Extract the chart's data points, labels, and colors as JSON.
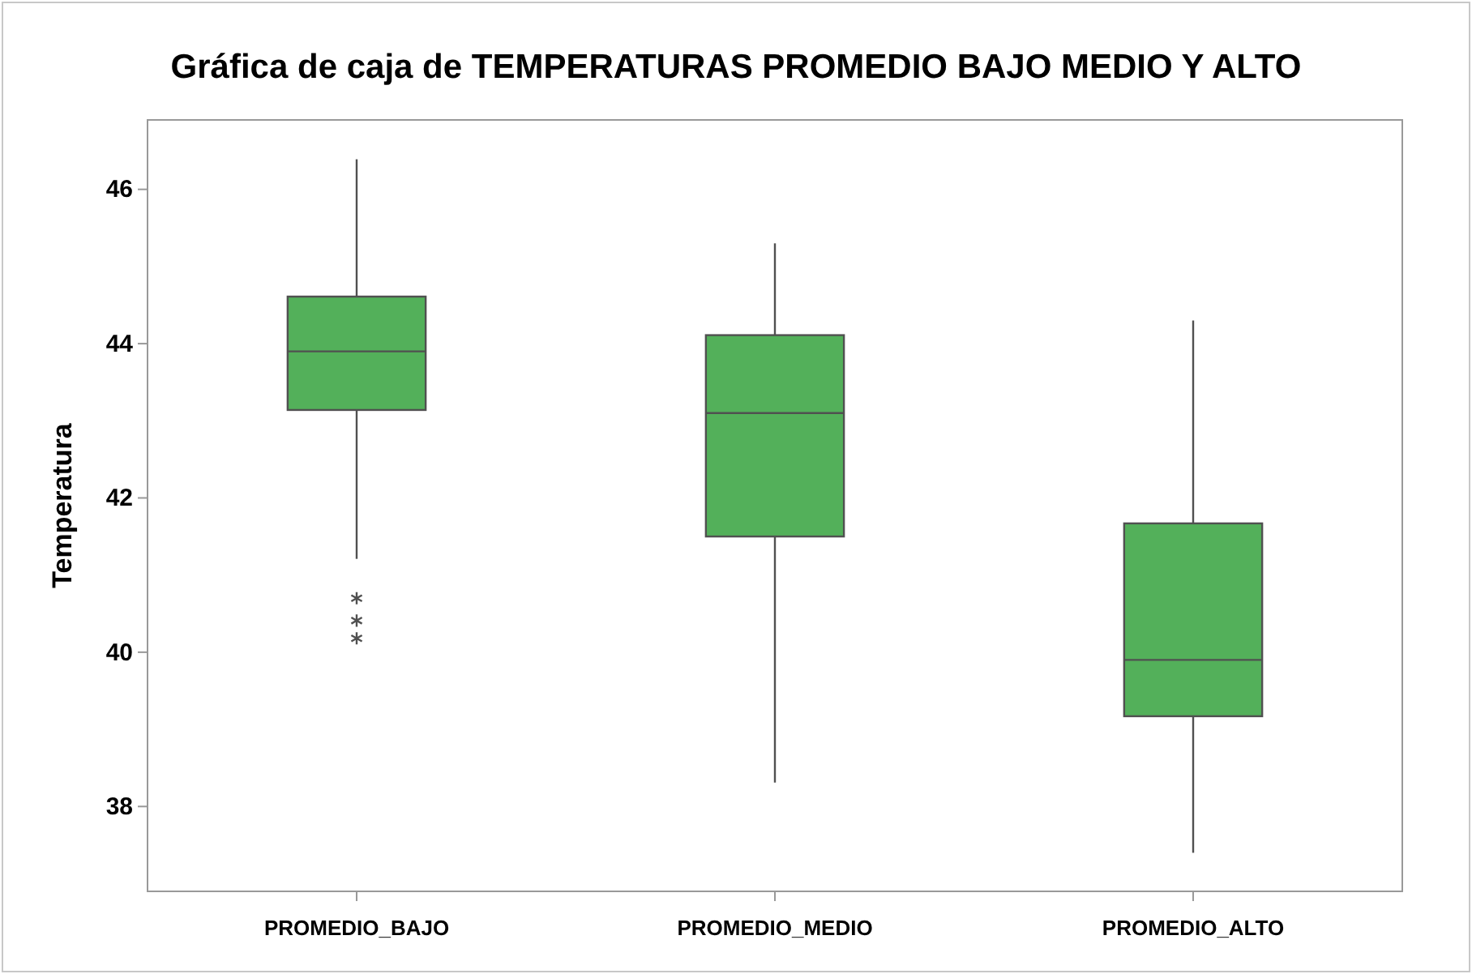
{
  "chart_data": {
    "type": "box",
    "title": "Gráfica de caja de TEMPERATURAS  PROMEDIO BAJO MEDIO Y ALTO",
    "ylabel": "Temperatura",
    "categories": [
      "PROMEDIO_BAJO",
      "PROMEDIO_MEDIO",
      "PROMEDIO_ALTO"
    ],
    "color": "#53b05a",
    "boxes": [
      {
        "low": 41.21,
        "q1": 43.14,
        "median": 43.9,
        "q3": 44.61,
        "high": 46.39,
        "outliers": [
          40.7,
          40.41,
          40.18
        ]
      },
      {
        "low": 38.31,
        "q1": 41.5,
        "median": 43.1,
        "q3": 44.11,
        "high": 45.3
      },
      {
        "low": 37.4,
        "q1": 39.17,
        "median": 39.9,
        "q3": 41.67,
        "high": 44.3
      }
    ],
    "ylim": [
      36.9,
      46.9
    ],
    "yticks": [
      38,
      40,
      42,
      44,
      46
    ],
    "grid": false
  }
}
